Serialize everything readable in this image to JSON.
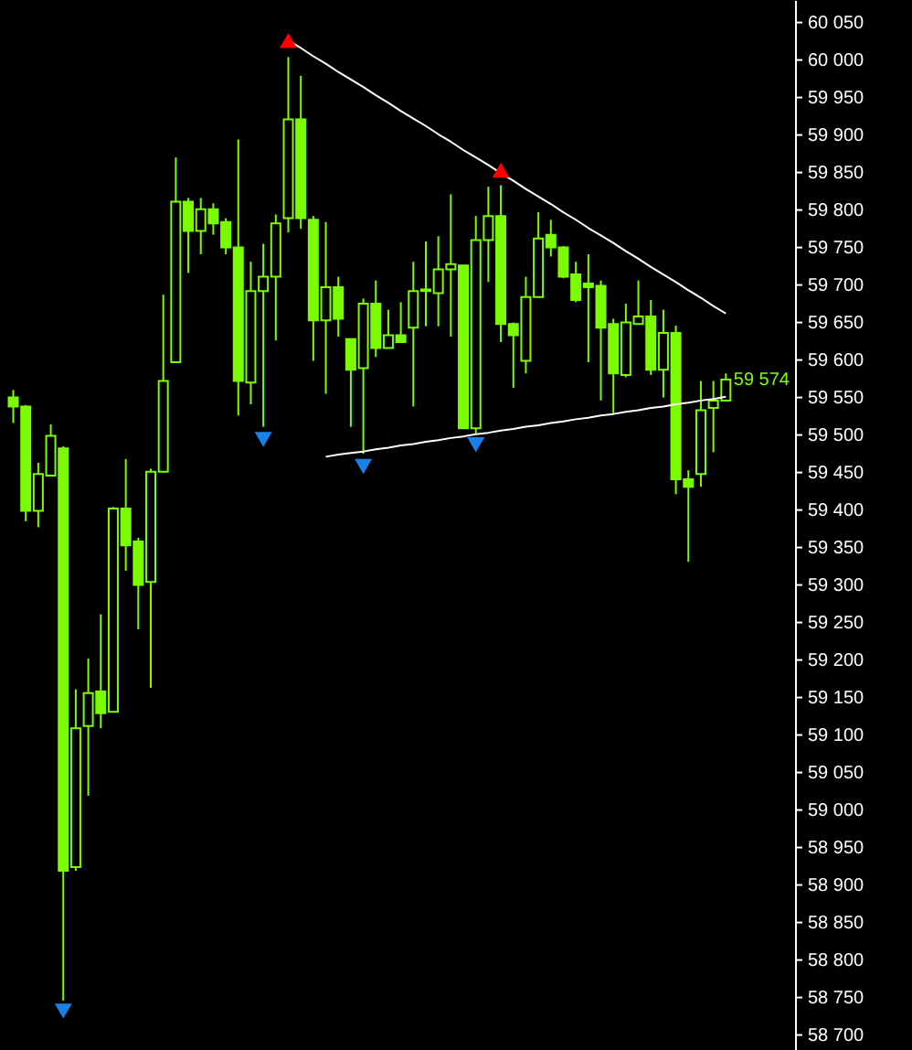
{
  "chart_data": {
    "type": "candlestick",
    "color": "#7cfc00",
    "tick_labels": "y",
    "categories": [
      null,
      null,
      null,
      null,
      null,
      null,
      null,
      null,
      null,
      null,
      null,
      null,
      null,
      null,
      null,
      null,
      null,
      null,
      null,
      null,
      null,
      null,
      null,
      null,
      null,
      null,
      null,
      null,
      null,
      null,
      null,
      null,
      null,
      null,
      null,
      null,
      null,
      null,
      null,
      null,
      null,
      null,
      null,
      null,
      null,
      null,
      null,
      null,
      null,
      null,
      null,
      null,
      null,
      null,
      null,
      null,
      null,
      null
    ],
    "ohlc": [
      [
        59550,
        59560,
        59516,
        59538
      ],
      [
        59538,
        59540,
        59385,
        59399
      ],
      [
        59399,
        59463,
        59377,
        59448
      ],
      [
        59446,
        59514,
        59446,
        59499
      ],
      [
        59482,
        59485,
        58746,
        58919
      ],
      [
        58924,
        59161,
        58919,
        59109
      ],
      [
        59112,
        59202,
        59019,
        59156
      ],
      [
        59158,
        59261,
        59109,
        59129
      ],
      [
        59131,
        59404,
        59131,
        59402
      ],
      [
        59402,
        59468,
        59319,
        59353
      ],
      [
        59358,
        59363,
        59241,
        59300
      ],
      [
        59304,
        59455,
        59163,
        59451
      ],
      [
        59451,
        59687,
        59451,
        59572
      ],
      [
        59597,
        59870,
        59597,
        59811
      ],
      [
        59811,
        59816,
        59716,
        59772
      ],
      [
        59772,
        59816,
        59741,
        59801
      ],
      [
        59801,
        59809,
        59767,
        59782
      ],
      [
        59784,
        59789,
        59741,
        59750
      ],
      [
        59750,
        59894,
        59526,
        59572
      ],
      [
        59570,
        59731,
        59541,
        59692
      ],
      [
        59692,
        59755,
        59511,
        59711
      ],
      [
        59711,
        59794,
        59626,
        59782
      ],
      [
        59789,
        60004,
        59770,
        59921
      ],
      [
        59921,
        59979,
        59775,
        59789
      ],
      [
        59787,
        59792,
        59599,
        59653
      ],
      [
        59653,
        59784,
        59555,
        59697
      ],
      [
        59697,
        59711,
        59631,
        59655
      ],
      [
        59628,
        59628,
        59511,
        59587
      ],
      [
        59589,
        59682,
        59475,
        59675
      ],
      [
        59675,
        59706,
        59604,
        59616
      ],
      [
        59616,
        59667,
        59616,
        59633
      ],
      [
        59633,
        59677,
        59624,
        59624
      ],
      [
        59643,
        59731,
        59538,
        59692
      ],
      [
        59694,
        59758,
        59645,
        59692
      ],
      [
        59689,
        59765,
        59645,
        59721
      ],
      [
        59721,
        59821,
        59631,
        59728
      ],
      [
        59726,
        59726,
        59509,
        59509
      ],
      [
        59509,
        59792,
        59502,
        59760
      ],
      [
        59760,
        59831,
        59704,
        59792
      ],
      [
        59792,
        59833,
        59624,
        59648
      ],
      [
        59648,
        59650,
        59563,
        59633
      ],
      [
        59599,
        59711,
        59582,
        59684
      ],
      [
        59684,
        59797,
        59684,
        59762
      ],
      [
        59767,
        59787,
        59738,
        59750
      ],
      [
        59750,
        59752,
        59709,
        59711
      ],
      [
        59714,
        59731,
        59677,
        59680
      ],
      [
        59702,
        59741,
        59597,
        59697
      ],
      [
        59699,
        59706,
        59546,
        59643
      ],
      [
        59648,
        59655,
        59529,
        59582
      ],
      [
        59580,
        59675,
        59577,
        59650
      ],
      [
        59648,
        59706,
        59648,
        59658
      ],
      [
        59658,
        59680,
        59580,
        59587
      ],
      [
        59587,
        59667,
        59550,
        59636
      ],
      [
        59636,
        59646,
        59421,
        59441
      ],
      [
        59441,
        59453,
        59331,
        59431
      ],
      [
        59448,
        59572,
        59431,
        59533
      ],
      [
        59536,
        59572,
        59477,
        59546
      ],
      [
        59546,
        59582,
        59546,
        59574
      ]
    ],
    "series": [
      {
        "type": "line",
        "color": "#ffffff",
        "values": [
          null,
          null,
          null,
          null,
          null,
          null,
          null,
          null,
          null,
          null,
          null,
          null,
          null,
          null,
          null,
          null,
          null,
          null,
          null,
          null,
          null,
          null,
          60026,
          60016,
          60005,
          59995,
          59984,
          59974,
          59964,
          59953,
          59943,
          59932,
          59922,
          59912,
          59901,
          59891,
          59880,
          59870,
          59860,
          59849,
          59839,
          59828,
          59818,
          59808,
          59797,
          59787,
          59776,
          59766,
          59756,
          59745,
          59735,
          59724,
          59714,
          59704,
          59693,
          59683,
          59672,
          59662
        ]
      },
      {
        "type": "line",
        "color": "#ffffff",
        "values": [
          null,
          null,
          null,
          null,
          null,
          null,
          null,
          null,
          null,
          null,
          null,
          null,
          null,
          null,
          null,
          null,
          null,
          null,
          null,
          null,
          null,
          null,
          null,
          null,
          null,
          59471,
          59474,
          59476,
          59478,
          59481,
          59483,
          59486,
          59488,
          59491,
          59493,
          59496,
          59498,
          59501,
          59503,
          59506,
          59508,
          59511,
          59513,
          59516,
          59518,
          59521,
          59523,
          59526,
          59528,
          59531,
          59533,
          59536,
          59538,
          59541,
          59543,
          59546,
          59548,
          59551
        ]
      },
      {
        "type": "scatter",
        "color": "#ff0000",
        "marker": "triangle",
        "values": [
          null,
          null,
          null,
          null,
          null,
          null,
          null,
          null,
          null,
          null,
          null,
          null,
          null,
          null,
          null,
          null,
          null,
          null,
          null,
          null,
          null,
          null,
          60026,
          null,
          null,
          null,
          null,
          null,
          null,
          null,
          null,
          null,
          null,
          null,
          null,
          null,
          null,
          null,
          null,
          59853,
          null,
          null,
          null,
          null,
          null,
          null,
          null,
          null,
          null,
          null,
          null,
          null,
          null,
          null,
          null,
          null,
          null,
          null
        ]
      },
      {
        "type": "scatter",
        "color": "#1a80e6",
        "marker": "triangle",
        "values": [
          null,
          null,
          null,
          null,
          58732,
          null,
          null,
          null,
          null,
          null,
          null,
          null,
          null,
          null,
          null,
          null,
          null,
          null,
          null,
          null,
          59494,
          null,
          null,
          null,
          null,
          null,
          null,
          null,
          59458,
          null,
          null,
          null,
          null,
          null,
          null,
          null,
          null,
          59487,
          null,
          null,
          null,
          null,
          null,
          null,
          null,
          null,
          null,
          null,
          null,
          null,
          null,
          null,
          null,
          null,
          null,
          null,
          null,
          null
        ]
      }
    ],
    "ylim": [
      58680,
      60080
    ],
    "yticks": [
      {
        "value": 58700,
        "label": "58 700"
      },
      {
        "value": 58750,
        "label": "58 750"
      },
      {
        "value": 58800,
        "label": "58 800"
      },
      {
        "value": 58850,
        "label": "58 850"
      },
      {
        "value": 58900,
        "label": "58 900"
      },
      {
        "value": 58950,
        "label": "58 950"
      },
      {
        "value": 59000,
        "label": "59 000"
      },
      {
        "value": 59050,
        "label": "59 050"
      },
      {
        "value": 59100,
        "label": "59 100"
      },
      {
        "value": 59150,
        "label": "59 150"
      },
      {
        "value": 59200,
        "label": "59 200"
      },
      {
        "value": 59250,
        "label": "59 250"
      },
      {
        "value": 59300,
        "label": "59 300"
      },
      {
        "value": 59350,
        "label": "59 350"
      },
      {
        "value": 59400,
        "label": "59 400"
      },
      {
        "value": 59450,
        "label": "59 450"
      },
      {
        "value": 59500,
        "label": "59 500"
      },
      {
        "value": 59550,
        "label": "59 550"
      },
      {
        "value": 59600,
        "label": "59 600"
      },
      {
        "value": 59650,
        "label": "59 650"
      },
      {
        "value": 59700,
        "label": "59 700"
      },
      {
        "value": 59750,
        "label": "59 750"
      },
      {
        "value": 59800,
        "label": "59 800"
      },
      {
        "value": 59850,
        "label": "59 850"
      },
      {
        "value": 59900,
        "label": "59 900"
      },
      {
        "value": 59950,
        "label": "59 950"
      },
      {
        "value": 60000,
        "label": "60 000"
      },
      {
        "value": 60050,
        "label": "60 050"
      }
    ],
    "annotations": [
      "59 574"
    ]
  }
}
